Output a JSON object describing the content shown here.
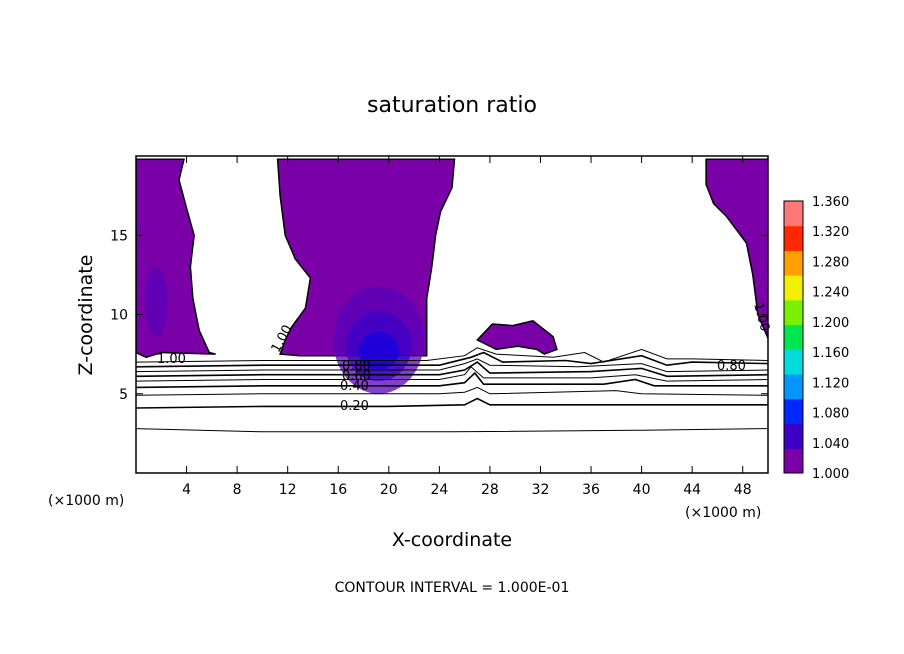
{
  "chart_data": {
    "type": "contour",
    "title": "saturation ratio",
    "xlabel": "X-coordinate",
    "ylabel": "Z-coordinate",
    "x_unit": "(×1000 m)",
    "y_unit": "(×1000 m)",
    "xlim": [
      0,
      50
    ],
    "ylim": [
      0,
      20
    ],
    "x_ticks": [
      4,
      8,
      12,
      16,
      20,
      24,
      28,
      32,
      36,
      40,
      44,
      48
    ],
    "y_ticks": [
      5,
      10,
      15
    ],
    "colorbar": {
      "min": 1.0,
      "max": 1.36,
      "ticks": [
        "1.000",
        "1.040",
        "1.080",
        "1.120",
        "1.160",
        "1.200",
        "1.240",
        "1.280",
        "1.320",
        "1.360"
      ],
      "colors": [
        "#7a00a8",
        "#3c00c8",
        "#0028ff",
        "#0096ff",
        "#00dcdc",
        "#00e650",
        "#78f000",
        "#f0f000",
        "#ffa000",
        "#ff2800",
        "#ff7878"
      ]
    },
    "contour_labels": [
      "1.00",
      "0.80",
      "0.60",
      "0.40",
      "0.20",
      "1.00",
      "0.80",
      "1.00"
    ],
    "contour_interval_text": "CONTOUR INTERVAL = 1.000E-01",
    "lower_contours": [
      {
        "level": 0.1,
        "points": [
          [
            0,
            2.8
          ],
          [
            10,
            2.6
          ],
          [
            25,
            2.6
          ],
          [
            40,
            2.7
          ],
          [
            50,
            2.8
          ]
        ]
      },
      {
        "level": 0.2,
        "points": [
          [
            0,
            4.1
          ],
          [
            10,
            4.2
          ],
          [
            20,
            4.2
          ],
          [
            26,
            4.3
          ],
          [
            27,
            4.7
          ],
          [
            28,
            4.3
          ],
          [
            40,
            4.3
          ],
          [
            50,
            4.3
          ]
        ]
      },
      {
        "level": 0.3,
        "points": [
          [
            0,
            4.9
          ],
          [
            10,
            5.0
          ],
          [
            24,
            5.0
          ],
          [
            26,
            5.1
          ],
          [
            27,
            5.4
          ],
          [
            28,
            5.0
          ],
          [
            38,
            5.2
          ],
          [
            40,
            5.0
          ],
          [
            50,
            4.9
          ]
        ]
      },
      {
        "level": 0.4,
        "points": [
          [
            0,
            5.4
          ],
          [
            10,
            5.5
          ],
          [
            24,
            5.5
          ],
          [
            26,
            5.7
          ],
          [
            26.8,
            6.3
          ],
          [
            27.5,
            5.6
          ],
          [
            37,
            5.6
          ],
          [
            39.5,
            5.9
          ],
          [
            41,
            5.5
          ],
          [
            50,
            5.5
          ]
        ]
      },
      {
        "level": 0.5,
        "points": [
          [
            0,
            5.8
          ],
          [
            10,
            5.9
          ],
          [
            24,
            5.9
          ],
          [
            26,
            6.2
          ],
          [
            26.5,
            6.7
          ],
          [
            27.5,
            6.0
          ],
          [
            36,
            6.0
          ],
          [
            39.5,
            6.2
          ],
          [
            42,
            5.8
          ],
          [
            50,
            5.9
          ]
        ]
      },
      {
        "level": 0.6,
        "points": [
          [
            0,
            6.1
          ],
          [
            10,
            6.2
          ],
          [
            24,
            6.2
          ],
          [
            26,
            6.5
          ],
          [
            27,
            7.0
          ],
          [
            28,
            6.3
          ],
          [
            36,
            6.4
          ],
          [
            40,
            6.6
          ],
          [
            42,
            6.1
          ],
          [
            50,
            6.2
          ]
        ]
      },
      {
        "level": 0.7,
        "points": [
          [
            0,
            6.4
          ],
          [
            10,
            6.5
          ],
          [
            24,
            6.5
          ],
          [
            26,
            6.9
          ],
          [
            27,
            7.2
          ],
          [
            28,
            6.8
          ],
          [
            35,
            6.7
          ],
          [
            40,
            6.9
          ],
          [
            42,
            6.4
          ],
          [
            50,
            6.5
          ]
        ]
      },
      {
        "level": 0.8,
        "points": [
          [
            0,
            6.7
          ],
          [
            10,
            6.8
          ],
          [
            24,
            6.8
          ],
          [
            26.5,
            7.3
          ],
          [
            27.5,
            7.6
          ],
          [
            29,
            7.0
          ],
          [
            34,
            7.1
          ],
          [
            36,
            6.9
          ],
          [
            40,
            7.4
          ],
          [
            42,
            6.8
          ],
          [
            44,
            7.0
          ],
          [
            50,
            6.9
          ]
        ]
      },
      {
        "level": 0.9,
        "points": [
          [
            0,
            7.0
          ],
          [
            10,
            7.1
          ],
          [
            23,
            7.1
          ],
          [
            26,
            7.4
          ],
          [
            27,
            7.9
          ],
          [
            28.5,
            7.5
          ],
          [
            33,
            7.3
          ],
          [
            35.5,
            7.6
          ],
          [
            37,
            7.0
          ],
          [
            40,
            7.8
          ],
          [
            42,
            7.2
          ],
          [
            44,
            7.2
          ],
          [
            50,
            7.1
          ]
        ]
      }
    ],
    "saturated_regions": [
      {
        "name": "left-column",
        "points": [
          [
            0,
            19.8
          ],
          [
            3.8,
            19.8
          ],
          [
            3.4,
            18.5
          ],
          [
            3.9,
            17
          ],
          [
            4.6,
            15
          ],
          [
            4.3,
            13
          ],
          [
            4.5,
            11
          ],
          [
            5.0,
            9
          ],
          [
            5.8,
            7.6
          ],
          [
            6.3,
            7.5
          ],
          [
            2,
            7.6
          ],
          [
            0.8,
            7.3
          ],
          [
            0,
            7.6
          ]
        ]
      },
      {
        "name": "central-column",
        "points": [
          [
            11.2,
            19.8
          ],
          [
            25.2,
            19.8
          ],
          [
            25.0,
            18
          ],
          [
            24.1,
            16.5
          ],
          [
            23.7,
            15
          ],
          [
            23.4,
            13
          ],
          [
            23.0,
            11
          ],
          [
            23.0,
            9
          ],
          [
            23.0,
            7.4
          ],
          [
            13.0,
            7.4
          ],
          [
            11.4,
            7.5
          ],
          [
            11.8,
            8.4
          ],
          [
            12.3,
            9.2
          ],
          [
            13.4,
            10.4
          ],
          [
            13.8,
            12.3
          ],
          [
            12.6,
            13.5
          ],
          [
            11.8,
            15
          ],
          [
            11.4,
            17.5
          ]
        ]
      },
      {
        "name": "right-column",
        "points": [
          [
            45.1,
            19.8
          ],
          [
            50,
            19.8
          ],
          [
            50,
            8.5
          ],
          [
            49.2,
            10
          ],
          [
            48.8,
            12.5
          ],
          [
            48.3,
            14.5
          ],
          [
            46.7,
            16.2
          ],
          [
            45.7,
            17
          ],
          [
            45.1,
            18.2
          ]
        ]
      },
      {
        "name": "mid-blob",
        "points": [
          [
            27.0,
            8.4
          ],
          [
            28.2,
            9.4
          ],
          [
            29.8,
            9.3
          ],
          [
            31.4,
            9.6
          ],
          [
            33.0,
            8.6
          ],
          [
            33.3,
            7.8
          ],
          [
            32.3,
            7.5
          ],
          [
            31.7,
            7.8
          ],
          [
            30.2,
            8.0
          ],
          [
            28.5,
            7.8
          ]
        ]
      }
    ],
    "enhanced_regions": [
      {
        "cx": 19.2,
        "cy": 8.4,
        "rx": 3.6,
        "ry": 3.4,
        "value": 1.02
      },
      {
        "cx": 19.2,
        "cy": 8.0,
        "rx": 2.6,
        "ry": 2.2,
        "value": 1.04
      },
      {
        "cx": 19.2,
        "cy": 7.7,
        "rx": 1.6,
        "ry": 1.2,
        "value": 1.06
      },
      {
        "cx": 1.6,
        "cy": 10.8,
        "rx": 0.9,
        "ry": 2.2,
        "value": 1.02
      }
    ]
  }
}
